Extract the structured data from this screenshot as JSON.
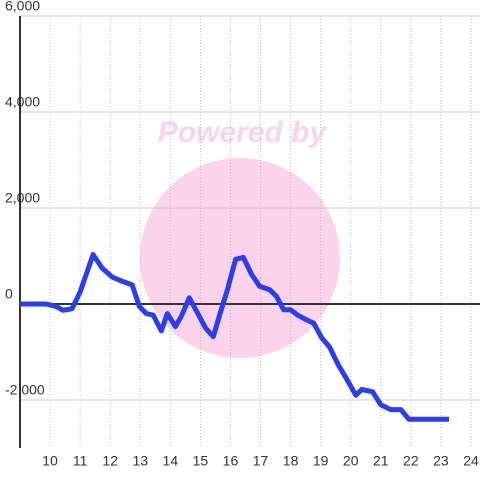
{
  "chart_data": {
    "type": "line",
    "watermark": "Powered by",
    "x": [
      9.0,
      9.87,
      10.2,
      10.43,
      10.73,
      11.0,
      11.43,
      11.73,
      12.07,
      12.37,
      12.73,
      12.97,
      13.2,
      13.43,
      13.7,
      13.9,
      14.17,
      14.37,
      14.63,
      14.9,
      15.17,
      15.43,
      15.63,
      15.9,
      16.17,
      16.43,
      16.7,
      16.97,
      17.3,
      17.53,
      17.77,
      18.0,
      18.23,
      18.5,
      18.77,
      19.03,
      19.3,
      19.57,
      19.9,
      20.17,
      20.37,
      20.73,
      21.0,
      21.33,
      21.67,
      21.93,
      22.33,
      23.27
    ],
    "series": [
      {
        "color": "#2a3df2",
        "values": [
          0,
          0,
          -50,
          -130,
          -100,
          250,
          1030,
          750,
          560,
          480,
          400,
          -50,
          -200,
          -230,
          -560,
          -200,
          -470,
          -250,
          130,
          -180,
          -500,
          -680,
          -250,
          300,
          930,
          970,
          620,
          370,
          300,
          160,
          -120,
          -120,
          -230,
          -320,
          -400,
          -700,
          -900,
          -1250,
          -1600,
          -1900,
          -1780,
          -1830,
          -2100,
          -2200,
          -2200,
          -2400,
          -2400,
          -2400
        ]
      }
    ],
    "xlim": [
      9,
      24.3
    ],
    "xticks": [
      10,
      11,
      12,
      13,
      14,
      15,
      16,
      17,
      18,
      19,
      20,
      21,
      22,
      23,
      24
    ],
    "ylim": [
      -3000,
      6000
    ],
    "yticks": [
      {
        "value": -2000,
        "label": "-2,000"
      },
      0,
      {
        "value": 2000,
        "label": "2,000"
      },
      {
        "value": 4000,
        "label": "4,000"
      },
      {
        "value": 6000,
        "label": "6,000"
      }
    ],
    "grid": true
  }
}
